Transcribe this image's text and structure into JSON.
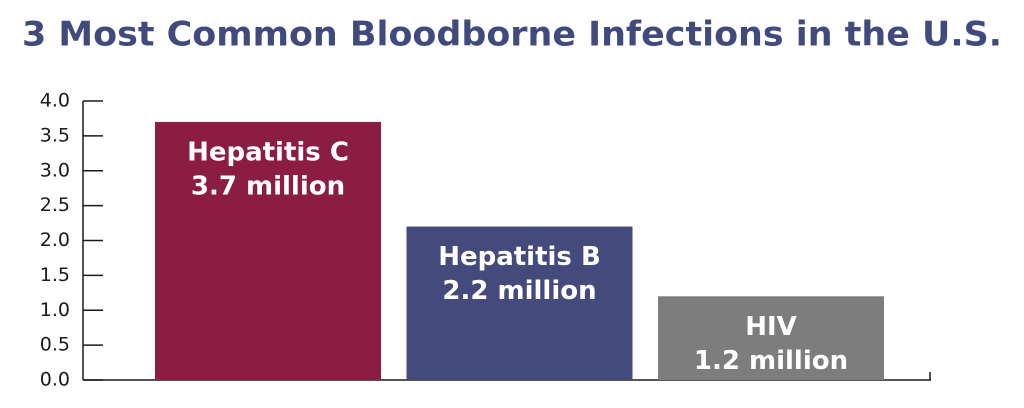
{
  "chart_data": {
    "type": "bar",
    "title": "3 Most Common Bloodborne Infections in the U.S.",
    "categories": [
      "Hepatitis C",
      "Hepatitis B",
      "HIV"
    ],
    "values": [
      3.7,
      2.2,
      1.2
    ],
    "value_labels": [
      "3.7 million",
      "2.2 million",
      "1.2 million"
    ],
    "colors": [
      "#8b1c42",
      "#454a7c",
      "#7d7d7d"
    ],
    "ylim": [
      0,
      4
    ],
    "yticks": [
      {
        "value": 0,
        "label": "0.0"
      },
      0.5,
      {
        "value": 1,
        "label": "1.0"
      },
      1.5,
      {
        "value": 2,
        "label": "2.0"
      },
      2.5,
      {
        "value": 3,
        "label": "3.0"
      },
      3.5,
      {
        "value": 4,
        "label": "4.0"
      }
    ]
  }
}
